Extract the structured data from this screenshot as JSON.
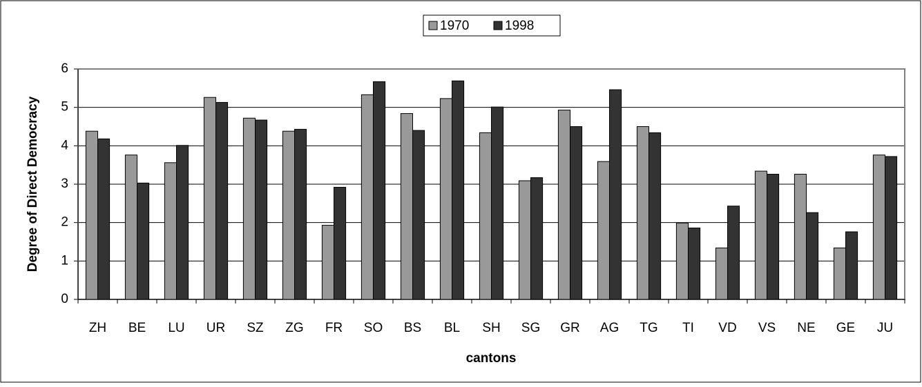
{
  "chart_data": {
    "type": "bar",
    "y_label": "Degree of Direct Democracy",
    "x_label": "cantons",
    "categories": [
      "ZH",
      "BE",
      "LU",
      "UR",
      "SZ",
      "ZG",
      "FR",
      "SO",
      "BS",
      "BL",
      "SH",
      "SG",
      "GR",
      "AG",
      "TG",
      "TI",
      "VD",
      "VS",
      "NE",
      "GE",
      "JU"
    ],
    "series": [
      {
        "name": "1970",
        "color": "#999999",
        "values": [
          4.38,
          3.76,
          3.56,
          5.26,
          4.72,
          4.38,
          1.93,
          5.33,
          4.84,
          5.23,
          4.34,
          3.09,
          4.93,
          3.59,
          4.5,
          1.99,
          1.34,
          3.34,
          3.26,
          1.34,
          3.76
        ]
      },
      {
        "name": "1998",
        "color": "#333333",
        "values": [
          4.18,
          3.03,
          4.01,
          5.13,
          4.67,
          4.43,
          2.92,
          5.67,
          4.4,
          5.69,
          5.01,
          3.17,
          4.5,
          5.46,
          4.34,
          1.86,
          2.43,
          3.26,
          2.26,
          1.76,
          3.72
        ]
      }
    ],
    "ylim": [
      0,
      6
    ],
    "yticks": [
      0,
      1,
      2,
      3,
      4,
      5,
      6
    ],
    "grid": true,
    "legend": "top"
  }
}
